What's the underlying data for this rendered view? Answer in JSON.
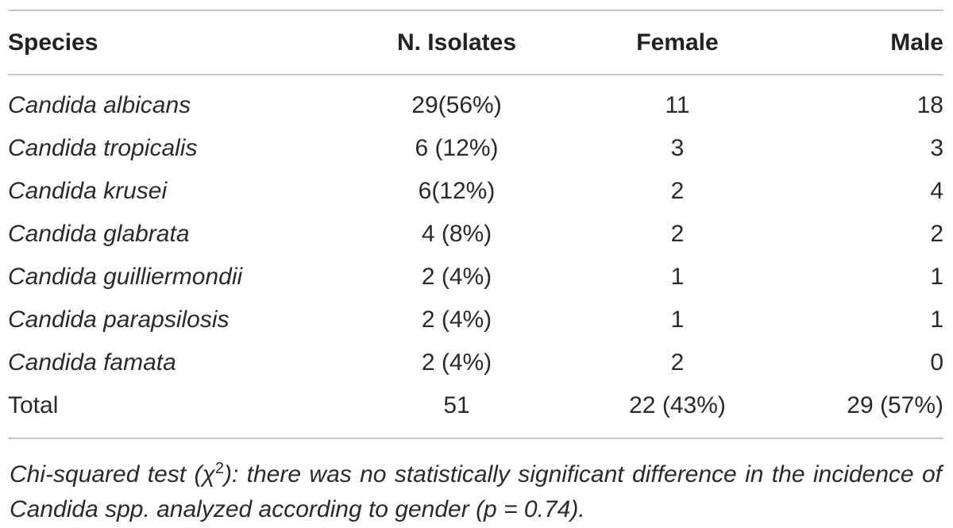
{
  "table": {
    "headers": {
      "species": "Species",
      "isolates": "N. Isolates",
      "female": "Female",
      "male": "Male"
    },
    "rows": [
      {
        "species": "Candida albicans",
        "isolates": "29(56%)",
        "female": "11",
        "male": "18"
      },
      {
        "species": "Candida tropicalis",
        "isolates": "6 (12%)",
        "female": "3",
        "male": "3"
      },
      {
        "species": "Candida krusei",
        "isolates": "6(12%)",
        "female": "2",
        "male": "4"
      },
      {
        "species": "Candida glabrata",
        "isolates": "4 (8%)",
        "female": "2",
        "male": "2"
      },
      {
        "species": "Candida guilliermondii",
        "isolates": "2 (4%)",
        "female": "1",
        "male": "1"
      },
      {
        "species": "Candida parapsilosis",
        "isolates": "2 (4%)",
        "female": "1",
        "male": "1"
      },
      {
        "species": "Candida famata",
        "isolates": "2 (4%)",
        "female": "2",
        "male": "0"
      }
    ],
    "total": {
      "label": "Total",
      "isolates": "51",
      "female": "22 (43%)",
      "male": "29 (57%)"
    }
  },
  "footnote": {
    "before_sup": "Chi-squared test (χ",
    "sup": "2",
    "after_sup": "): there was no statistically significant difference in the incidence of Candida spp. analyzed according to gender (p = 0.74)."
  }
}
